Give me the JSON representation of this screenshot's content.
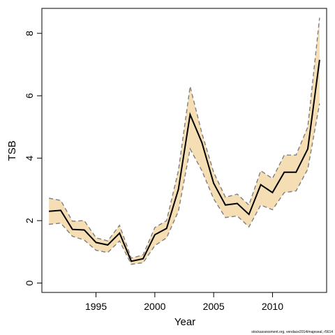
{
  "chart_data": {
    "type": "line",
    "xlabel": "Year",
    "ylabel": "TSB",
    "xlim": [
      1990.4,
      2014.6
    ],
    "ylim": [
      -0.3,
      8.8
    ],
    "x_ticks": [
      1995,
      2000,
      2005,
      2010
    ],
    "y_ticks": [
      0,
      2,
      4,
      6,
      8
    ],
    "grid": false,
    "x": [
      1991,
      1992,
      1993,
      1994,
      1995,
      1996,
      1997,
      1998,
      1999,
      2000,
      2001,
      2002,
      2003,
      2004,
      2005,
      2006,
      2007,
      2008,
      2009,
      2010,
      2011,
      2012,
      2013,
      2014
    ],
    "series": [
      {
        "values": [
          2.3,
          2.33,
          1.72,
          1.7,
          1.3,
          1.22,
          1.6,
          0.7,
          0.78,
          1.55,
          1.75,
          3.0,
          5.4,
          4.5,
          3.2,
          2.5,
          2.55,
          2.2,
          3.15,
          2.9,
          3.55,
          3.55,
          4.3,
          7.15
        ]
      }
    ],
    "band": {
      "upper": [
        2.72,
        2.65,
        1.98,
        2.0,
        1.45,
        1.35,
        1.85,
        0.8,
        0.9,
        1.78,
        2.0,
        3.6,
        6.3,
        4.8,
        3.55,
        2.75,
        2.85,
        2.5,
        3.6,
        3.35,
        4.1,
        4.1,
        5.0,
        8.5
      ],
      "lower": [
        1.88,
        1.92,
        1.5,
        1.38,
        1.05,
        0.98,
        1.35,
        0.6,
        0.65,
        1.2,
        1.45,
        2.3,
        4.3,
        3.6,
        2.7,
        2.1,
        2.15,
        1.8,
        2.5,
        2.35,
        2.9,
        2.95,
        3.65,
        5.75
      ]
    },
    "colors": {
      "band": "#f5deb3",
      "line": "#000000",
      "bounds": "#7f7f7f",
      "frame": "#000000"
    }
  },
  "credit": "stockassessment.org, vendace2014/majeseal, r5614"
}
